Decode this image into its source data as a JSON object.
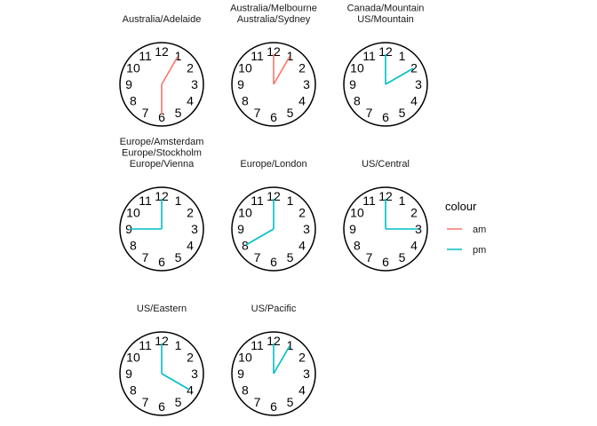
{
  "chart_data": {
    "type": "clock-facet",
    "dial_numbers": [
      "12",
      "1",
      "2",
      "3",
      "4",
      "5",
      "6",
      "7",
      "8",
      "9",
      "10",
      "11"
    ],
    "panels": [
      {
        "lines": [
          "Australia/Adelaide"
        ],
        "hour": 0.5,
        "minute": 30,
        "period": "am"
      },
      {
        "lines": [
          "Australia/Melbourne",
          "Australia/Sydney"
        ],
        "hour": 1,
        "minute": 0,
        "period": "am"
      },
      {
        "lines": [
          "Canada/Mountain",
          "US/Mountain"
        ],
        "hour": 14,
        "minute": 0,
        "period": "pm"
      },
      {
        "lines": [
          "Europe/Amsterdam",
          "Europe/Stockholm",
          "Europe/Vienna"
        ],
        "hour": 21,
        "minute": 0,
        "period": "pm"
      },
      {
        "lines": [
          "Europe/London"
        ],
        "hour": 20,
        "minute": 0,
        "period": "pm"
      },
      {
        "lines": [
          "US/Central"
        ],
        "hour": 15,
        "minute": 0,
        "period": "pm"
      },
      {
        "lines": [
          "US/Eastern"
        ],
        "hour": 16,
        "minute": 0,
        "period": "pm"
      },
      {
        "lines": [
          "US/Pacific"
        ],
        "hour": 13,
        "minute": 0,
        "period": "pm"
      }
    ],
    "legend": {
      "title": "colour",
      "position": "right",
      "items": [
        {
          "label": "am",
          "color": "#F8766D"
        },
        {
          "label": "pm",
          "color": "#00BFC4"
        }
      ]
    }
  }
}
